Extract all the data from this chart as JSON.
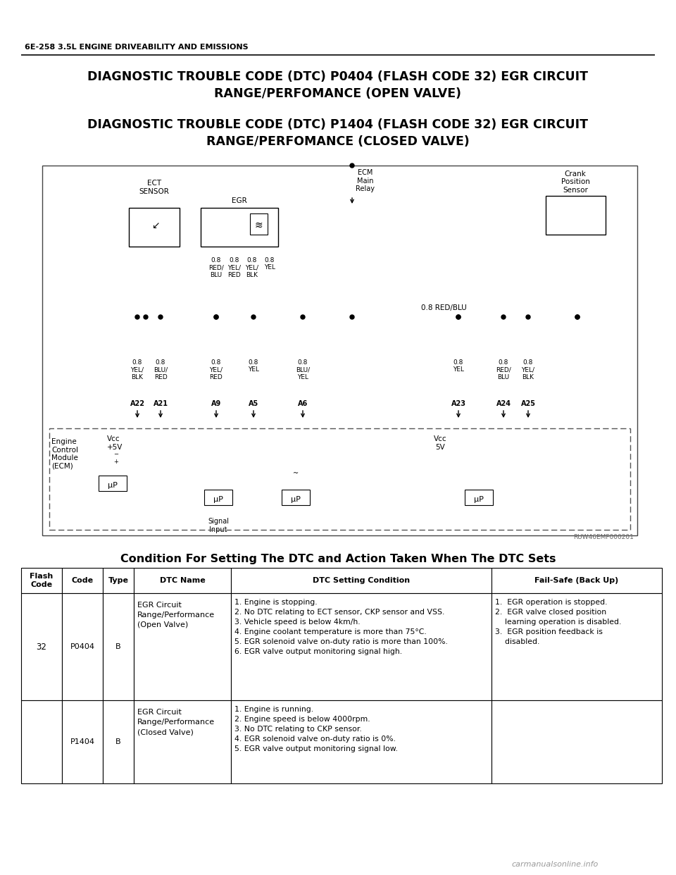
{
  "page_header": "6E-258 3.5L ENGINE DRIVEABILITY AND EMISSIONS",
  "title1": "DIAGNOSTIC TROUBLE CODE (DTC) P0404 (FLASH CODE 32) EGR CIRCUIT\nRANGE/PERFOMANCE (OPEN VALVE)",
  "title2": "DIAGNOSTIC TROUBLE CODE (DTC) P1404 (FLASH CODE 32) EGR CIRCUIT\nRANGE/PERFOMANCE (CLOSED VALVE)",
  "table_title": "Condition For Setting The DTC and Action Taken When The DTC Sets",
  "fig_label": "RUW46EMF000201",
  "bg_color": "#ffffff",
  "cond1": "1. Engine is stopping.\n2. No DTC relating to ECT sensor, CKP sensor and VSS.\n3. Vehicle speed is below 4km/h.\n4. Engine coolant temperature is more than 75°C.\n5. EGR solenoid valve on-duty ratio is more than 100%.\n6. EGR valve output monitoring signal high.",
  "fs1": "1.  EGR operation is stopped.\n2.  EGR valve closed position\n    learning operation is disabled.\n3.  EGR position feedback is\n    disabled.",
  "cond2": "1. Engine is running.\n2. Engine speed is below 4000rpm.\n3. No DTC relating to CKP sensor.\n4. EGR solenoid valve on-duty ratio is 0%.\n5. EGR valve output monitoring signal low."
}
